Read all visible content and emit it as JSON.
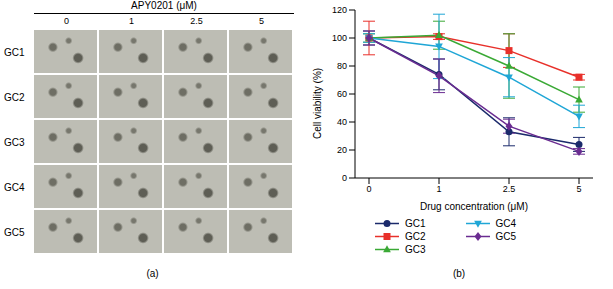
{
  "panel_a": {
    "title": "APY0201 (μM)",
    "columns": [
      "0",
      "1",
      "2.5",
      "5"
    ],
    "rows": [
      "GC1",
      "GC2",
      "GC3",
      "GC4",
      "GC5"
    ],
    "panel_label": "(a)"
  },
  "chart_data": {
    "type": "line",
    "panel_label": "(b)",
    "x_label": "Drug concentration (μM)",
    "y_label": "Cell viability (%)",
    "categories": [
      "0",
      "1",
      "2.5",
      "5"
    ],
    "ylim": [
      0,
      120
    ],
    "yticks": [
      0,
      20,
      40,
      60,
      80,
      100,
      120
    ],
    "grid": false,
    "legend": "bottom",
    "series": [
      {
        "name": "GC1",
        "color": "#1b2a6b",
        "marker": "circle",
        "values": [
          100,
          74,
          33,
          24
        ],
        "errors": [
          5,
          11,
          10,
          5
        ]
      },
      {
        "name": "GC2",
        "color": "#e8302a",
        "marker": "square",
        "values": [
          100,
          101,
          91,
          72
        ],
        "errors": [
          12,
          2,
          12,
          2
        ]
      },
      {
        "name": "GC3",
        "color": "#3aa935",
        "marker": "triangle",
        "values": [
          100,
          102,
          80,
          56
        ],
        "errors": [
          3,
          10,
          23,
          9
        ]
      },
      {
        "name": "GC4",
        "color": "#1fa6d6",
        "marker": "triangle-down",
        "values": [
          100,
          94,
          72,
          44
        ],
        "errors": [
          3,
          23,
          14,
          8
        ]
      },
      {
        "name": "GC5",
        "color": "#6a2c91",
        "marker": "diamond",
        "values": [
          100,
          73,
          37,
          19
        ],
        "errors": [
          5,
          12,
          5,
          2
        ]
      }
    ]
  }
}
